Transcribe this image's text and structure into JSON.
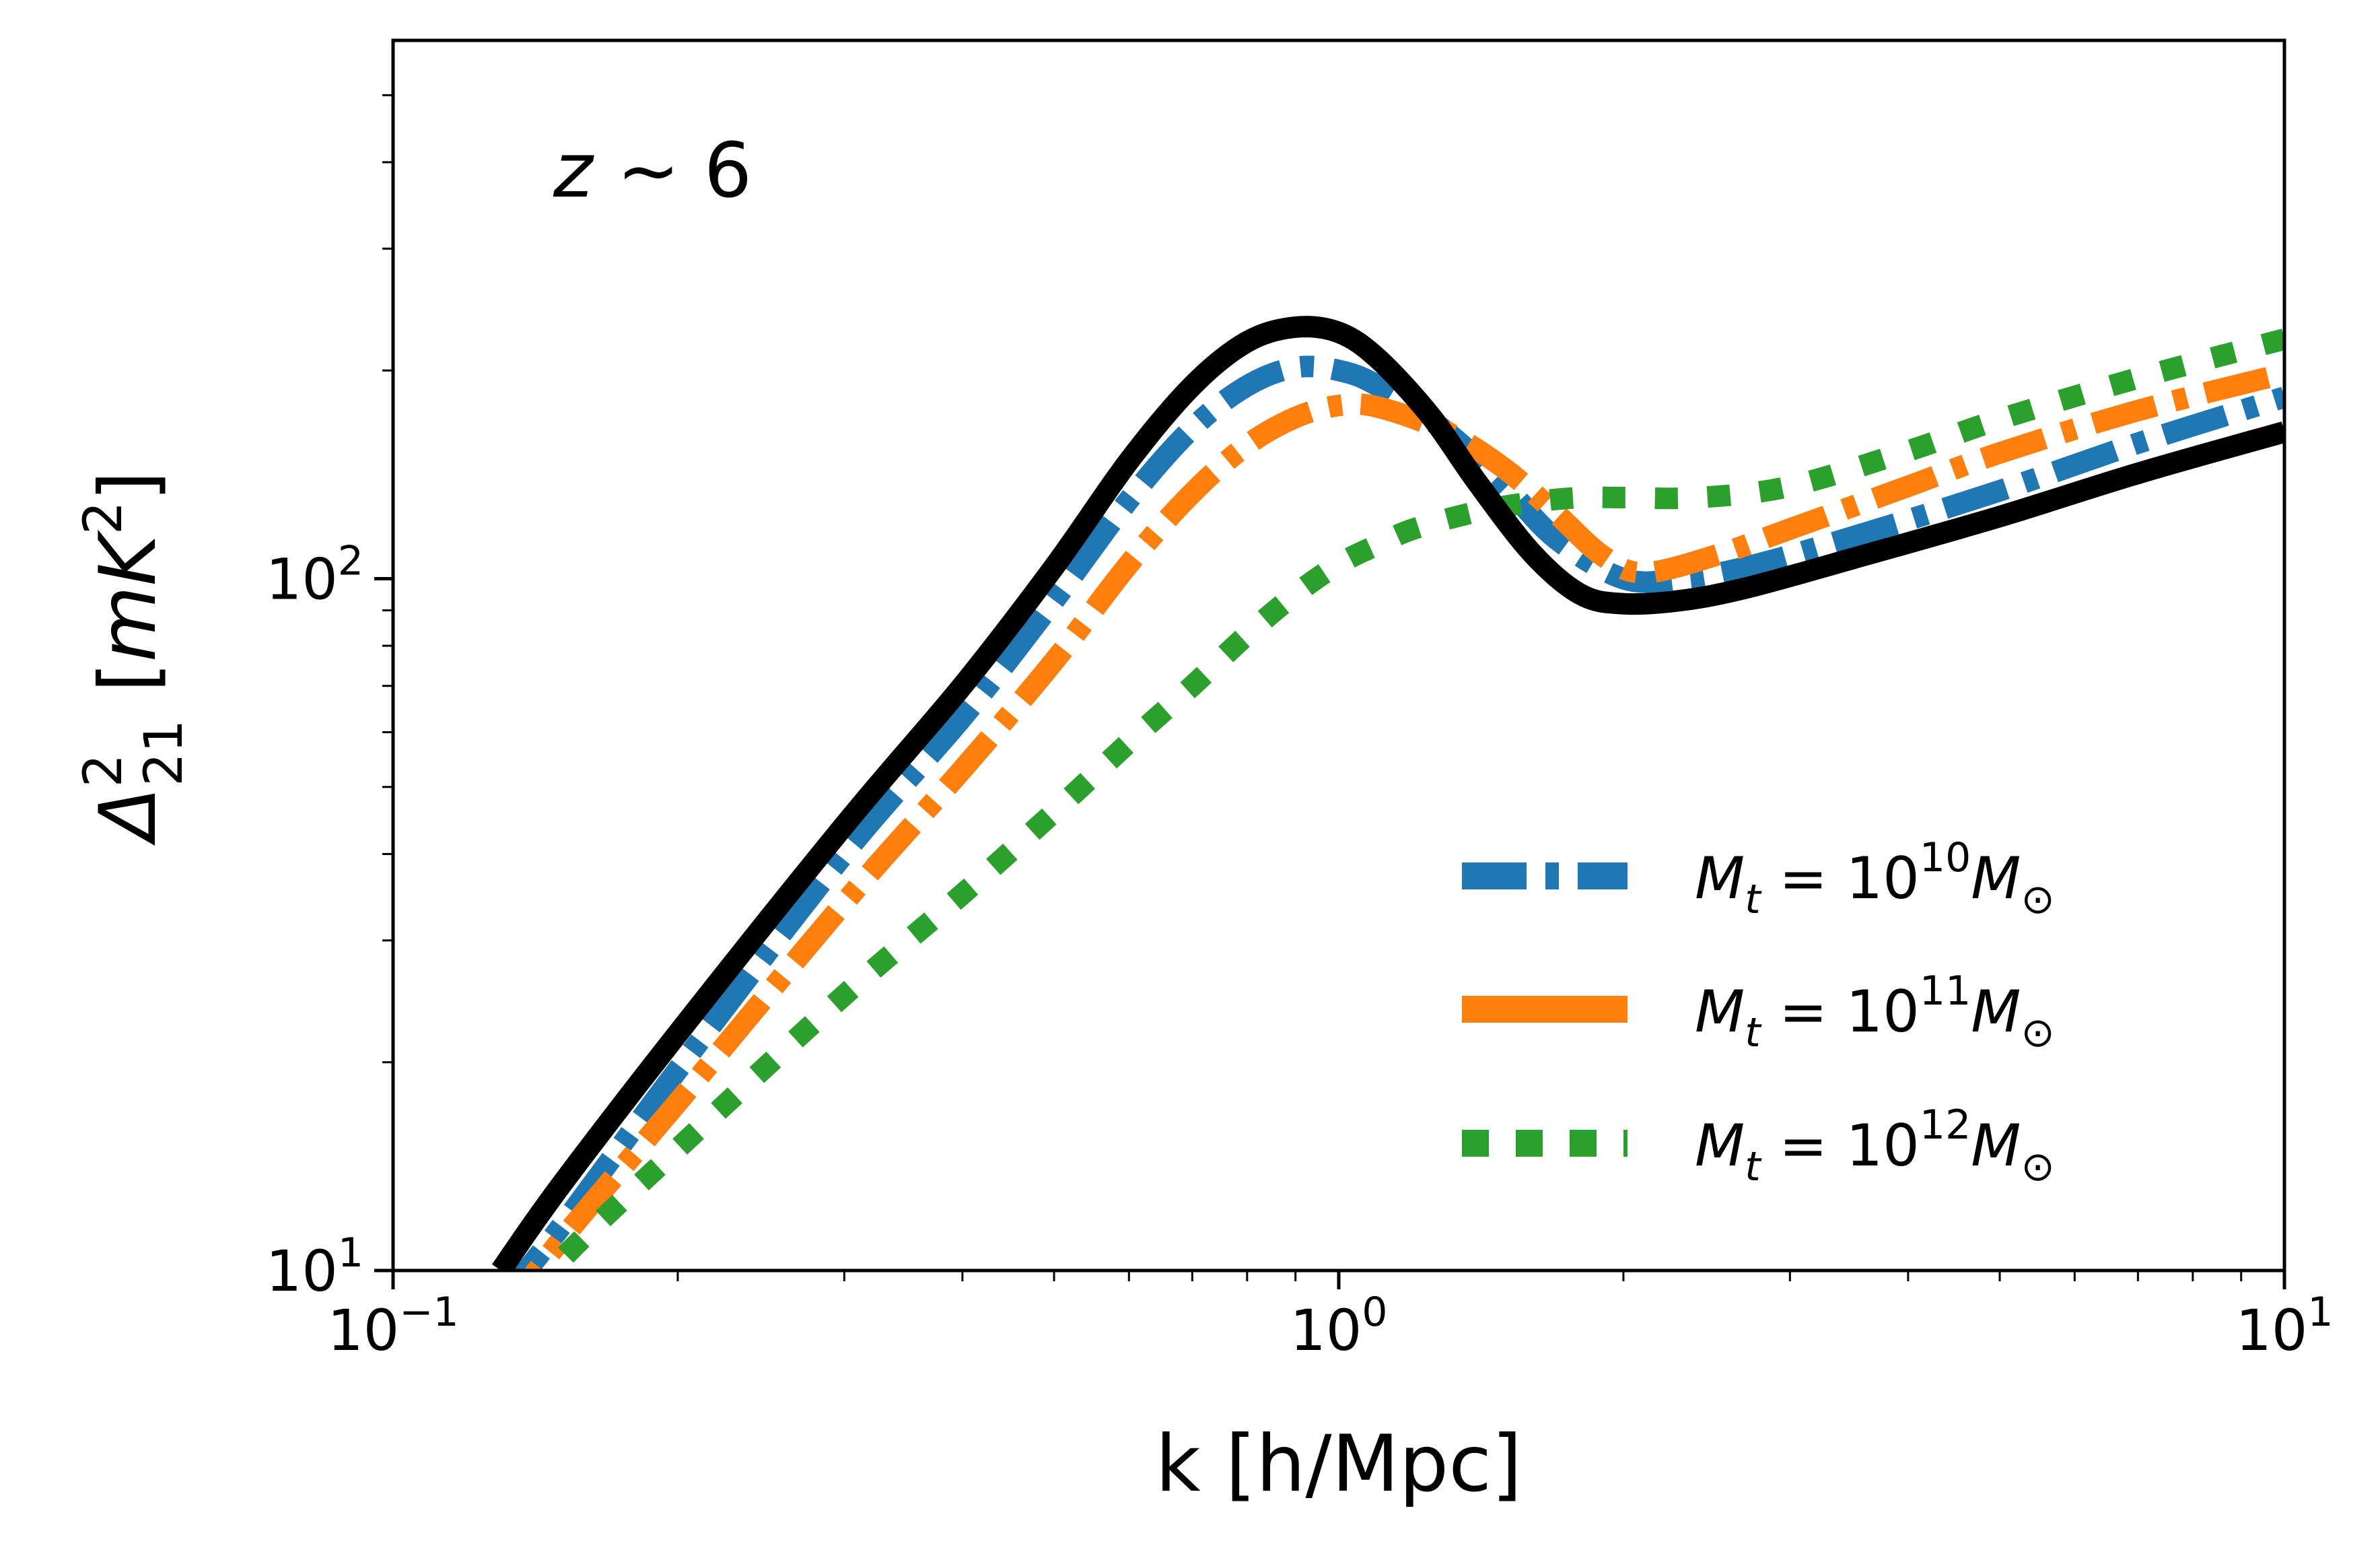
{
  "chart_data": {
    "type": "line",
    "xlabel": "k [h/Mpc]",
    "ylabel": {
      "symbol": "Δ",
      "superscript": "2",
      "subscript": "21",
      "unit_open": "[",
      "unit_var": "mK",
      "unit_sup": "2",
      "unit_close": "]"
    },
    "x_scale": "log",
    "y_scale": "log",
    "xlim": [
      0.1,
      10
    ],
    "ylim": [
      10,
      600
    ],
    "x_ticks": [
      {
        "base": "10",
        "exp": "−1",
        "value": 0.1
      },
      {
        "base": "10",
        "exp": "0",
        "value": 1
      },
      {
        "base": "10",
        "exp": "1",
        "value": 10
      }
    ],
    "y_ticks": [
      {
        "base": "10",
        "exp": "1",
        "value": 10
      },
      {
        "base": "10",
        "exp": "2",
        "value": 100
      }
    ],
    "annotation": {
      "var": "z",
      "rest": " ~ 6"
    },
    "grid": false,
    "legend_position": "lower-right",
    "series": [
      {
        "name": "M_t = 10^10 M_⊙",
        "legend": {
          "var": "M",
          "sub": "t",
          "eq": " = 10",
          "exp": "10",
          "mvar": "M",
          "msub": "⊙"
        },
        "color": "#1f77b4",
        "style": "dashdot",
        "x": [
          0.13,
          0.15,
          0.2,
          0.3,
          0.4,
          0.5,
          0.6,
          0.7,
          0.8,
          0.9,
          1.0,
          1.1,
          1.3,
          1.5,
          1.7,
          2.0,
          2.3,
          2.7,
          3.5,
          5,
          7,
          10
        ],
        "y": [
          9.0,
          11.5,
          19.5,
          40,
          63,
          93,
          130,
          165,
          190,
          202,
          200,
          190,
          163,
          136,
          114,
          100,
          100,
          104,
          115,
          134,
          157,
          183
        ]
      },
      {
        "name": "M_t = 10^11 M_⊙",
        "legend": {
          "var": "M",
          "sub": "t",
          "eq": " = 10",
          "exp": "11",
          "mvar": "M",
          "msub": "⊙"
        },
        "color": "#ff7f0e",
        "style": "dashdot",
        "x": [
          0.13,
          0.15,
          0.2,
          0.3,
          0.4,
          0.5,
          0.6,
          0.7,
          0.8,
          0.9,
          1.0,
          1.1,
          1.3,
          1.5,
          1.7,
          1.9,
          2.1,
          2.5,
          3.0,
          4.0,
          5.0,
          7.0,
          10
        ],
        "y": [
          8.5,
          11.0,
          17.5,
          34,
          53,
          76,
          105,
          133,
          156,
          171,
          178,
          177,
          163,
          144,
          124,
          108,
          102,
          108,
          118,
          136,
          152,
          175,
          198
        ]
      },
      {
        "name": "M_t = 10^12 M_⊙",
        "legend": {
          "var": "M",
          "sub": "t",
          "eq": " = 10",
          "exp": "12",
          "mvar": "M",
          "msub": "⊙"
        },
        "color": "#2ca02c",
        "style": "dotted",
        "x": [
          0.13,
          0.15,
          0.2,
          0.3,
          0.4,
          0.5,
          0.6,
          0.7,
          0.8,
          0.9,
          1.0,
          1.1,
          1.2,
          1.4,
          1.6,
          1.8,
          2.0,
          2.4,
          3.0,
          4.0,
          5.0,
          7.0,
          10
        ],
        "y": [
          8.0,
          10.3,
          15,
          25,
          35,
          46,
          58,
          70,
          83,
          95,
          105,
          112,
          118,
          125,
          129,
          131,
          131,
          131,
          136,
          153,
          170,
          195,
          222
        ]
      },
      {
        "name": "",
        "color": "#000000",
        "style": "solid",
        "x": [
          0.13,
          0.15,
          0.2,
          0.3,
          0.4,
          0.5,
          0.6,
          0.7,
          0.8,
          0.9,
          1.0,
          1.1,
          1.25,
          1.4,
          1.6,
          1.8,
          2.0,
          2.3,
          2.7,
          3.5,
          5,
          7,
          10
        ],
        "y": [
          10,
          13.2,
          22,
          44,
          70,
          104,
          148,
          190,
          220,
          231,
          227,
          208,
          172,
          138,
          109,
          95,
          92,
          93,
          97,
          107,
          123,
          142,
          163
        ]
      }
    ]
  }
}
